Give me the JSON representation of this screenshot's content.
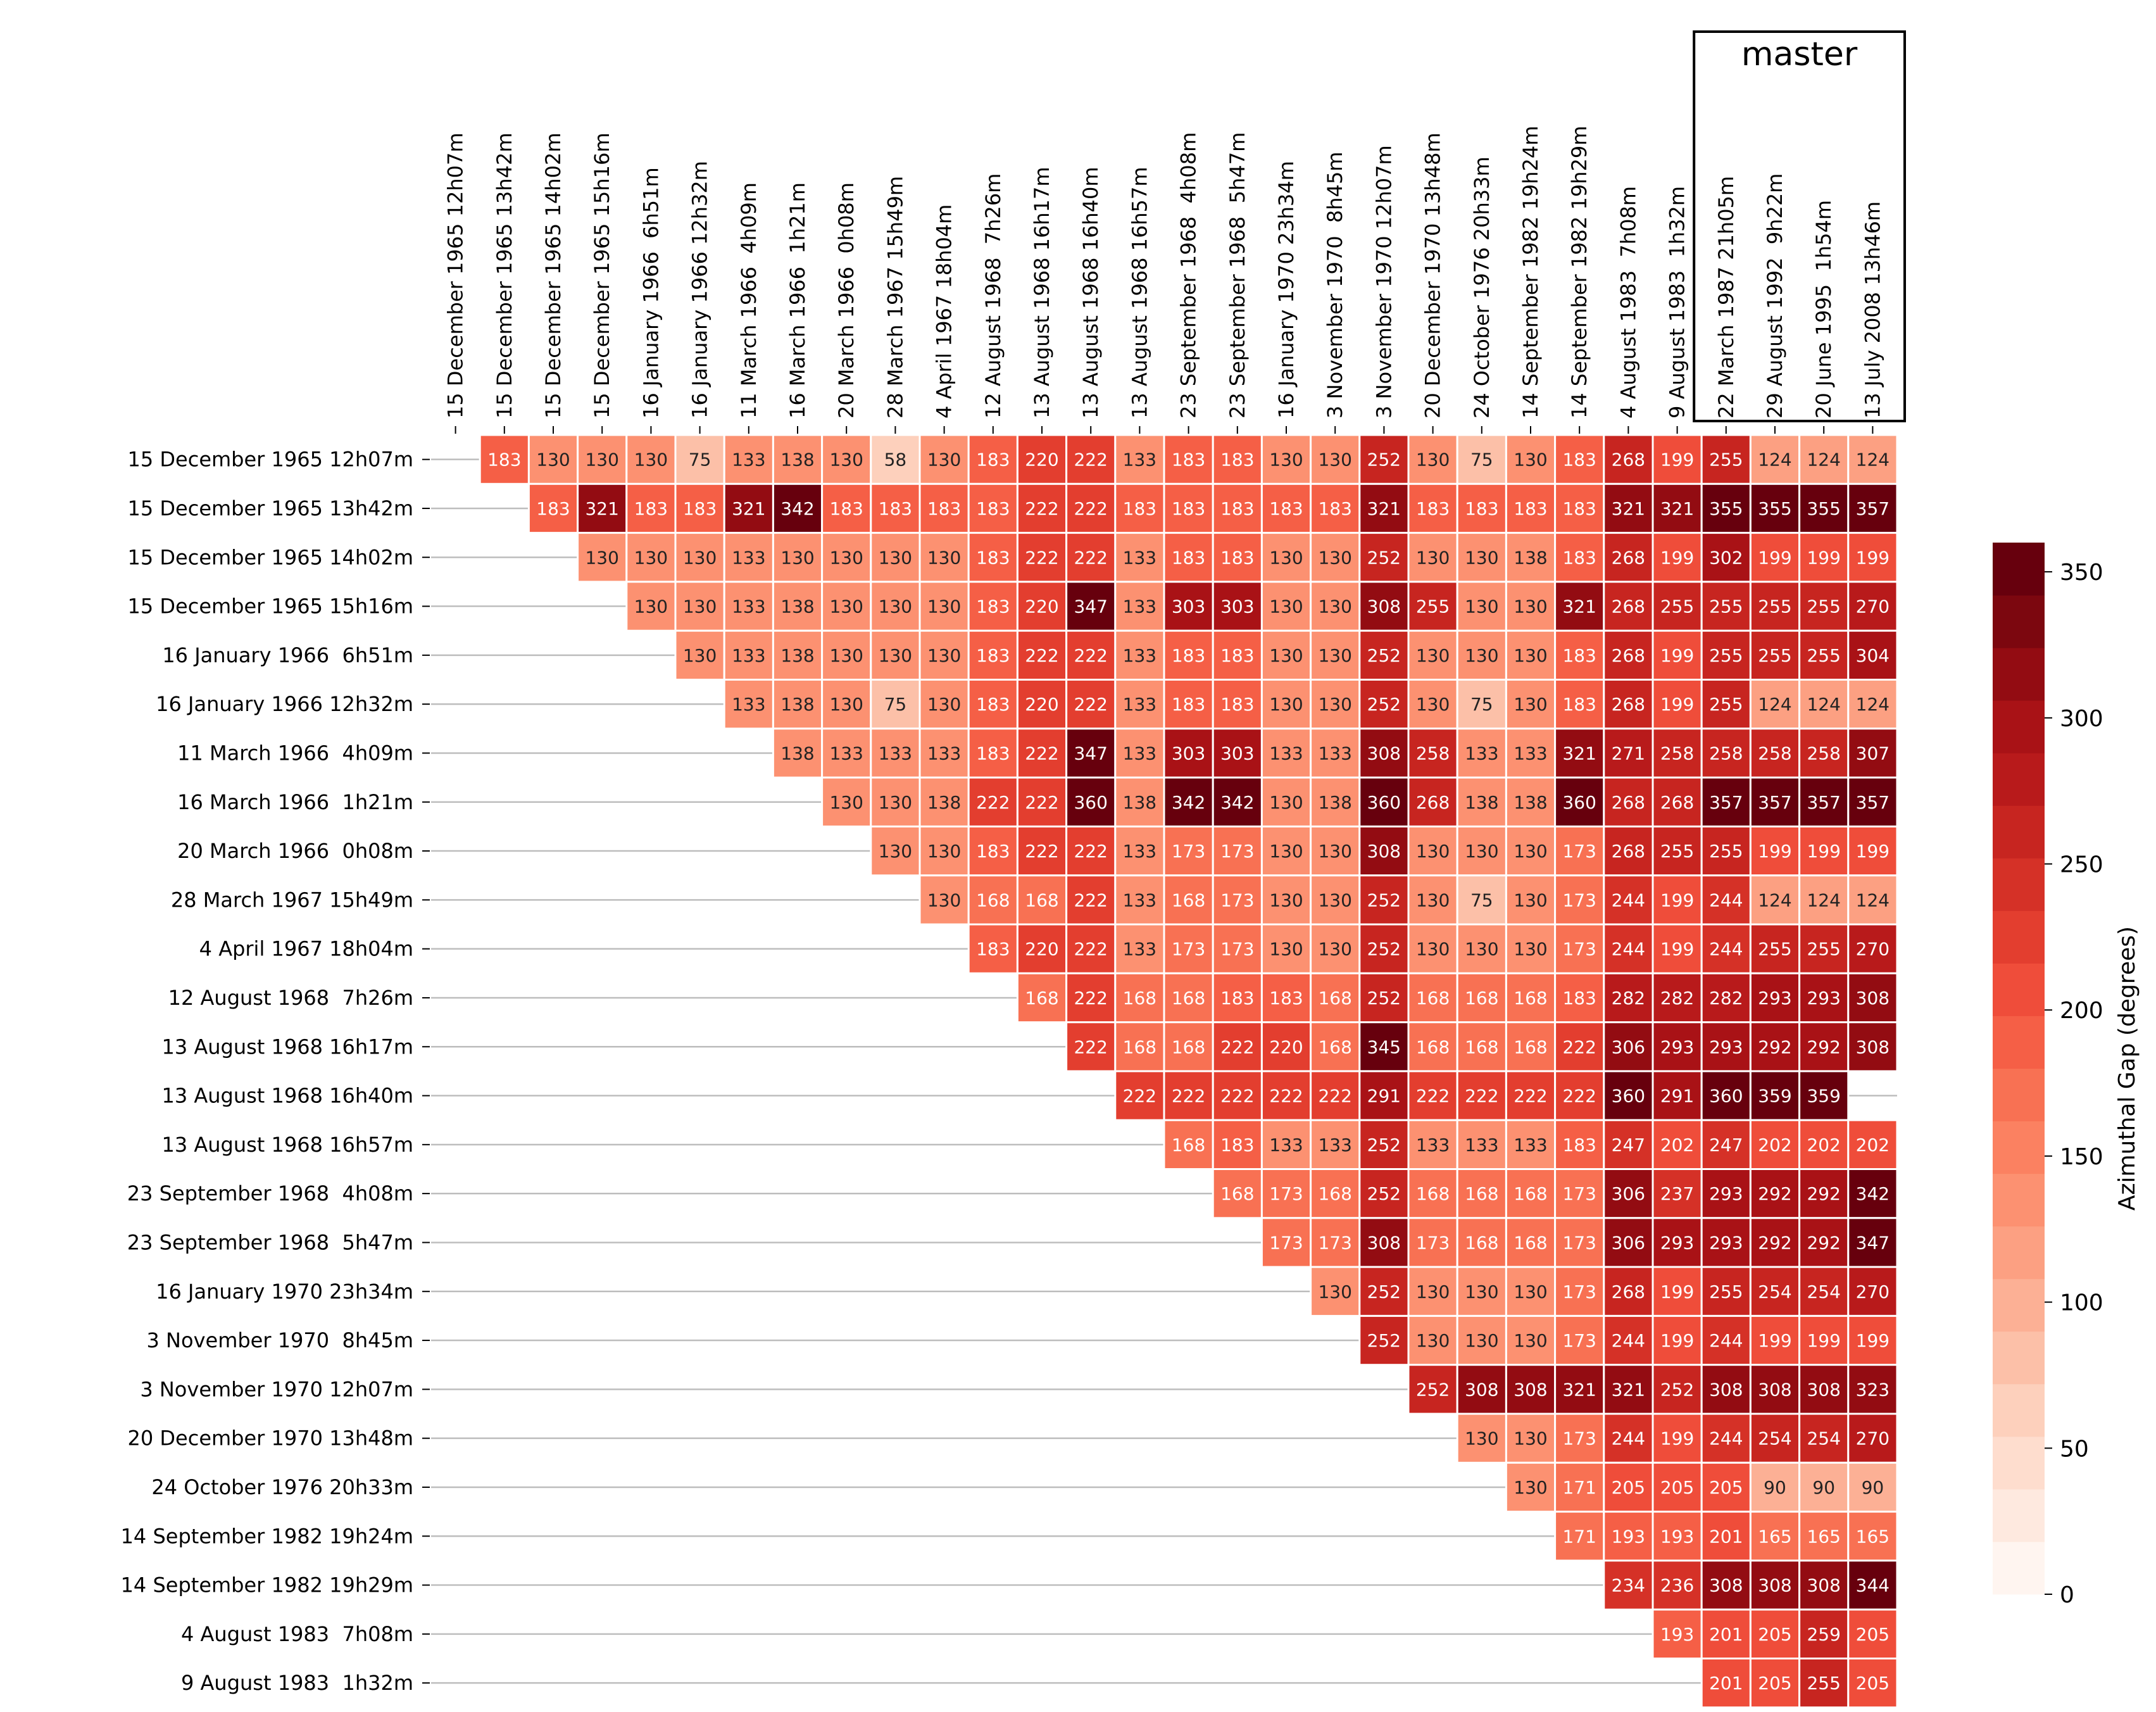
{
  "chart_data": {
    "type": "heatmap",
    "title": "",
    "master_label": "master",
    "master_columns": [
      "22 March 1987 21h05m",
      "29 August 1992  9h22m",
      "20 June 1995  1h54m",
      "13 July 2008 13h46m"
    ],
    "colorbar": {
      "label": "Azimuthal Gap (degrees)",
      "min": 0,
      "max": 360,
      "levels": 20,
      "ticks": [
        0,
        50,
        100,
        150,
        200,
        250,
        300,
        350
      ]
    },
    "columns": [
      "15 December 1965 12h07m",
      "15 December 1965 13h42m",
      "15 December 1965 14h02m",
      "15 December 1965 15h16m",
      "16 January 1966  6h51m",
      "16 January 1966 12h32m",
      "11 March 1966  4h09m",
      "16 March 1966  1h21m",
      "20 March 1966  0h08m",
      "28 March 1967 15h49m",
      "4 April 1967 18h04m",
      "12 August 1968  7h26m",
      "13 August 1968 16h17m",
      "13 August 1968 16h40m",
      "13 August 1968 16h57m",
      "23 September 1968  4h08m",
      "23 September 1968  5h47m",
      "16 January 1970 23h34m",
      "3 November 1970  8h45m",
      "3 November 1970 12h07m",
      "20 December 1970 13h48m",
      "24 October 1976 20h33m",
      "14 September 1982 19h24m",
      "14 September 1982 19h29m",
      "4 August 1983  7h08m",
      "9 August 1983  1h32m",
      "22 March 1987 21h05m",
      "29 August 1992  9h22m",
      "20 June 1995  1h54m",
      "13 July 2008 13h46m"
    ],
    "rows": [
      "15 December 1965 12h07m",
      "15 December 1965 13h42m",
      "15 December 1965 14h02m",
      "15 December 1965 15h16m",
      "16 January 1966  6h51m",
      "16 January 1966 12h32m",
      "11 March 1966  4h09m",
      "16 March 1966  1h21m",
      "20 March 1966  0h08m",
      "28 March 1967 15h49m",
      "4 April 1967 18h04m",
      "12 August 1968  7h26m",
      "13 August 1968 16h17m",
      "13 August 1968 16h40m",
      "13 August 1968 16h57m",
      "23 September 1968  4h08m",
      "23 September 1968  5h47m",
      "16 January 1970 23h34m",
      "3 November 1970  8h45m",
      "3 November 1970 12h07m",
      "20 December 1970 13h48m",
      "24 October 1976 20h33m",
      "14 September 1982 19h24m",
      "14 September 1982 19h29m",
      "4 August 1983  7h08m",
      "9 August 1983  1h32m"
    ],
    "values": [
      [
        183,
        130,
        130,
        130,
        75,
        133,
        138,
        130,
        58,
        130,
        183,
        220,
        222,
        133,
        183,
        183,
        130,
        130,
        252,
        130,
        75,
        130,
        183,
        268,
        199,
        255,
        124,
        124,
        124
      ],
      [
        183,
        321,
        183,
        183,
        321,
        342,
        183,
        183,
        183,
        183,
        222,
        222,
        183,
        183,
        183,
        183,
        183,
        321,
        183,
        183,
        183,
        183,
        321,
        321,
        355,
        355,
        355,
        357
      ],
      [
        130,
        130,
        130,
        133,
        130,
        130,
        130,
        130,
        183,
        222,
        222,
        133,
        183,
        183,
        130,
        130,
        252,
        130,
        130,
        138,
        183,
        268,
        199,
        302,
        199,
        199,
        199
      ],
      [
        130,
        130,
        133,
        138,
        130,
        130,
        130,
        183,
        220,
        347,
        133,
        303,
        303,
        130,
        130,
        308,
        255,
        130,
        130,
        321,
        268,
        255,
        255,
        255,
        255,
        270
      ],
      [
        130,
        133,
        138,
        130,
        130,
        130,
        183,
        222,
        222,
        133,
        183,
        183,
        130,
        130,
        252,
        130,
        130,
        130,
        183,
        268,
        199,
        255,
        255,
        255,
        304
      ],
      [
        133,
        138,
        130,
        75,
        130,
        183,
        220,
        222,
        133,
        183,
        183,
        130,
        130,
        252,
        130,
        75,
        130,
        183,
        268,
        199,
        255,
        124,
        124,
        124
      ],
      [
        138,
        133,
        133,
        133,
        183,
        222,
        347,
        133,
        303,
        303,
        133,
        133,
        308,
        258,
        133,
        133,
        321,
        271,
        258,
        258,
        258,
        258,
        307
      ],
      [
        130,
        130,
        138,
        222,
        222,
        360,
        138,
        342,
        342,
        130,
        138,
        360,
        268,
        138,
        138,
        360,
        268,
        268,
        357,
        357,
        357,
        357
      ],
      [
        130,
        130,
        183,
        222,
        222,
        133,
        173,
        173,
        130,
        130,
        308,
        130,
        130,
        130,
        173,
        268,
        255,
        255,
        199,
        199,
        199
      ],
      [
        130,
        168,
        168,
        222,
        133,
        168,
        173,
        130,
        130,
        252,
        130,
        75,
        130,
        173,
        244,
        199,
        244,
        124,
        124,
        124
      ],
      [
        183,
        220,
        222,
        133,
        173,
        173,
        130,
        130,
        252,
        130,
        130,
        130,
        173,
        244,
        199,
        244,
        255,
        255,
        270
      ],
      [
        168,
        222,
        168,
        168,
        183,
        183,
        168,
        252,
        168,
        168,
        168,
        183,
        282,
        282,
        282,
        293,
        293,
        308
      ],
      [
        222,
        168,
        168,
        222,
        220,
        168,
        345,
        168,
        168,
        168,
        222,
        306,
        293,
        293,
        292,
        292,
        308
      ],
      [
        222,
        222,
        222,
        222,
        222,
        291,
        222,
        222,
        222,
        222,
        360,
        291,
        360,
        359,
        359,
        null
      ],
      [
        168,
        183,
        133,
        133,
        252,
        133,
        133,
        133,
        183,
        247,
        202,
        247,
        202,
        202,
        202
      ],
      [
        168,
        173,
        168,
        252,
        168,
        168,
        168,
        173,
        306,
        237,
        293,
        292,
        292,
        342
      ],
      [
        173,
        173,
        308,
        173,
        168,
        168,
        173,
        306,
        293,
        293,
        292,
        292,
        347
      ],
      [
        130,
        252,
        130,
        130,
        130,
        173,
        268,
        199,
        255,
        254,
        254,
        270
      ],
      [
        252,
        130,
        130,
        130,
        173,
        244,
        199,
        244,
        199,
        199,
        199
      ],
      [
        252,
        308,
        308,
        321,
        321,
        252,
        308,
        308,
        308,
        323
      ],
      [
        130,
        130,
        173,
        244,
        199,
        244,
        254,
        254,
        270
      ],
      [
        130,
        171,
        205,
        205,
        205,
        90,
        90,
        90
      ],
      [
        171,
        193,
        193,
        201,
        165,
        165,
        165
      ],
      [
        234,
        236,
        308,
        308,
        308,
        344
      ],
      [
        193,
        201,
        205,
        259,
        205
      ],
      [
        201,
        205,
        255,
        205
      ]
    ]
  },
  "colors": {
    "ramp": [
      "#fff5f0",
      "#fee5d9",
      "#fdd4c2",
      "#fcbfa7",
      "#fca98c",
      "#fc9474",
      "#fb7f5f",
      "#f7694c",
      "#f14f3b",
      "#e03b2d",
      "#cd2a22",
      "#b91b1b",
      "#a50f15",
      "#830a10",
      "#67000d"
    ],
    "grid_line": "#bdbdbd",
    "frame": "#000000"
  }
}
